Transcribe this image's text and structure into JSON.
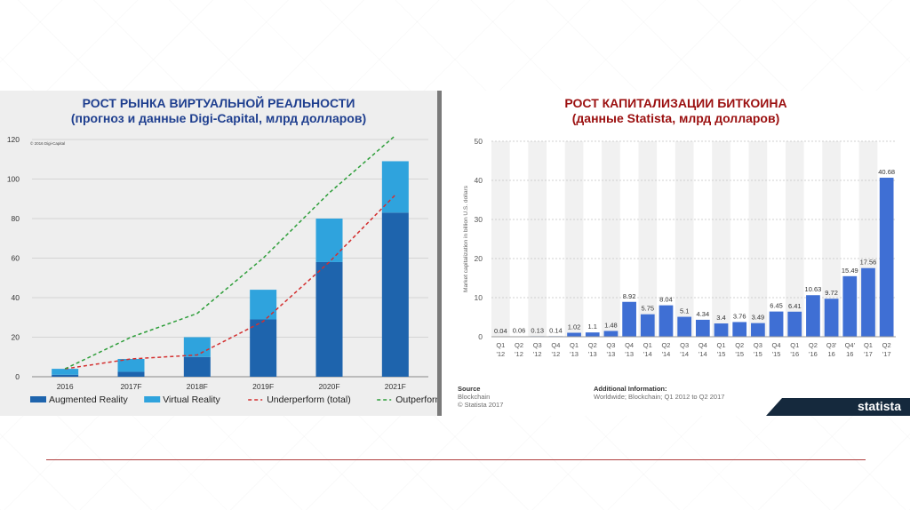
{
  "chart_data": [
    {
      "type": "bar",
      "title": "РОСТ РЫНКА ВИРТУАЛЬНОЙ РЕАЛЬНОСТИ",
      "subtitle": "(прогноз и данные Digi-Capital, млрд долларов)",
      "note": "© 2016 Digi-Capital",
      "stacked": true,
      "categories": [
        "2016",
        "2017F",
        "2018F",
        "2019F",
        "2020F",
        "2021F"
      ],
      "ylim": [
        0,
        120
      ],
      "yticks": [
        "0",
        "20",
        "40",
        "60",
        "80",
        "100",
        "120"
      ],
      "grid": true,
      "legend_position": "bottom",
      "series": [
        {
          "name": "Augmented Reality",
          "kind": "bar",
          "color": "#1e64ad",
          "values": [
            1,
            2.5,
            10,
            29,
            58,
            83
          ]
        },
        {
          "name": "Virtual Reality",
          "kind": "bar",
          "color": "#2fa3dd",
          "values": [
            3,
            6.5,
            10,
            15,
            22,
            26
          ]
        },
        {
          "name": "Underperform (total)",
          "kind": "line",
          "dashed": true,
          "color": "#d32f2f",
          "values": [
            4,
            9,
            11,
            28,
            58,
            92
          ]
        },
        {
          "name": "Outperform (total)",
          "kind": "line",
          "dashed": true,
          "color": "#2e9e3a",
          "values": [
            4,
            20,
            32,
            60,
            93,
            122
          ]
        }
      ]
    },
    {
      "type": "bar",
      "title": "РОСТ КАПИТАЛИЗАЦИИ БИТКОИНА",
      "subtitle": "(данные Statista, млрд долларов)",
      "ylabel": "Market capitalization in billion U.S. dollars",
      "ylim": [
        0,
        50
      ],
      "yticks": [
        "0",
        "10",
        "20",
        "30",
        "40",
        "50"
      ],
      "grid": true,
      "color": "#3f6fd4",
      "categories": [
        [
          "Q1",
          "'12"
        ],
        [
          "Q2",
          "'12"
        ],
        [
          "Q3",
          "'12"
        ],
        [
          "Q4",
          "'12"
        ],
        [
          "Q1",
          "'13"
        ],
        [
          "Q2",
          "'13"
        ],
        [
          "Q3",
          "'13"
        ],
        [
          "Q4",
          "'13"
        ],
        [
          "Q1",
          "'14"
        ],
        [
          "Q2",
          "'14"
        ],
        [
          "Q3",
          "'14"
        ],
        [
          "Q4",
          "'14"
        ],
        [
          "Q1",
          "'15"
        ],
        [
          "Q2",
          "'15"
        ],
        [
          "Q3",
          "'15"
        ],
        [
          "Q4",
          "'15"
        ],
        [
          "Q1",
          "'16"
        ],
        [
          "Q2",
          "'16"
        ],
        [
          "Q3'",
          "16"
        ],
        [
          "Q4'",
          "16"
        ],
        [
          "Q1",
          "'17"
        ],
        [
          "Q2",
          "'17"
        ]
      ],
      "values": [
        0.04,
        0.06,
        0.13,
        0.14,
        1.02,
        1.1,
        1.48,
        8.92,
        5.75,
        8.04,
        5.1,
        4.34,
        3.4,
        3.76,
        3.49,
        6.45,
        6.41,
        10.63,
        9.72,
        15.49,
        17.56,
        40.68
      ],
      "labels": [
        "0.04",
        "0.06",
        "0.13",
        "0.14",
        "1.02",
        "1.1",
        "1.48",
        "8.92",
        "5.75",
        "8.04",
        "5.1",
        "4.34",
        "3.4",
        "3.76",
        "3.49",
        "6.45",
        "6.41",
        "10.63",
        "9.72",
        "15.49",
        "17.56",
        "40.68"
      ]
    }
  ],
  "footer": {
    "source_head": "Source",
    "source_lines": [
      "Blockchain",
      "© Statista 2017"
    ],
    "info_head": "Additional Information:",
    "info_line": "Worldwide; Blockchain; Q1 2012 to Q2 2017",
    "brand": "statista"
  }
}
